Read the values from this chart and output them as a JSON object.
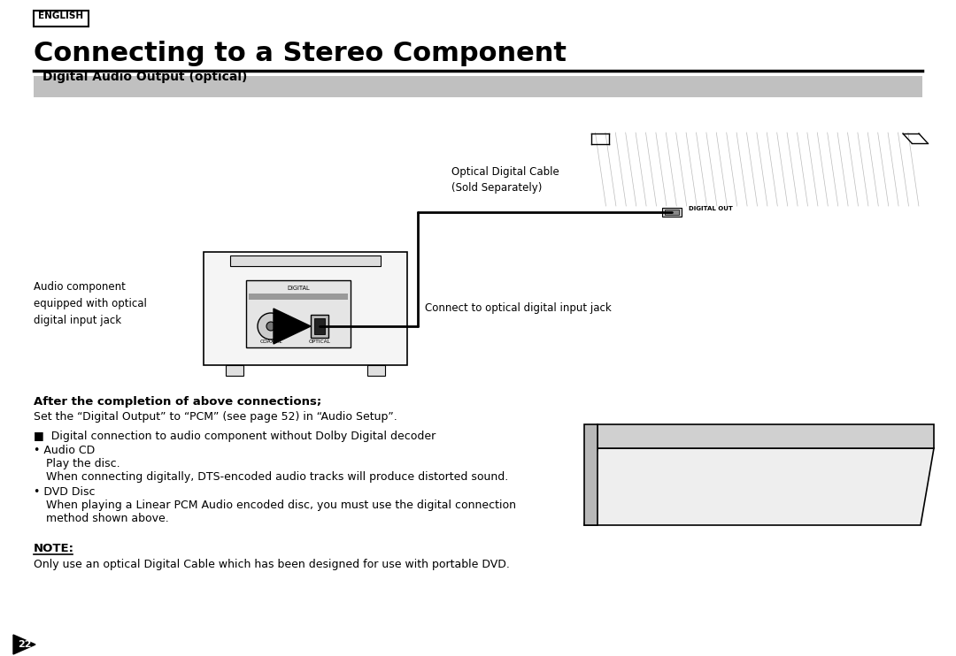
{
  "bg_color": "#ffffff",
  "page_width": 10.8,
  "page_height": 7.42,
  "english_label": "ENGLISH",
  "title": "Connecting to a Stereo Component",
  "section_header": "Digital Audio Output (optical)",
  "section_header_bg": "#c0c0c0",
  "diagram_label_optical_cable": "Optical Digital Cable\n(Sold Separately)",
  "diagram_label_audio_comp": "Audio component\nequipped with optical\ndigital input jack",
  "diagram_label_connect": "Connect to optical digital input jack",
  "diagram_label_digital_out": "DIGITAL OUT",
  "diagram_label_digital": "DIGITAL",
  "diagram_label_coaxial": "COAXIAL",
  "diagram_label_optical": "OPTICAL",
  "after_connections_header": "After the completion of above connections;",
  "after_connections_text": "Set the “Digital Output” to “PCM” (see page 52) in “Audio Setup”.",
  "bullet1": "■  Digital connection to audio component without Dolby Digital decoder",
  "bullet2": "• Audio CD",
  "bullet3": "Play the disc.",
  "bullet4": "When connecting digitally, DTS-encoded audio tracks will produce distorted sound.",
  "bullet5": "• DVD Disc",
  "bullet6": "When playing a Linear PCM Audio encoded disc, you must use the digital connection",
  "bullet7": "method shown above.",
  "note_header": "NOTE:",
  "note_text": "Only use an optical Digital Cable which has been designed for use with portable DVD.",
  "page_number": "22",
  "text_color": "#000000",
  "line_color": "#000000",
  "gray_color": "#888888"
}
